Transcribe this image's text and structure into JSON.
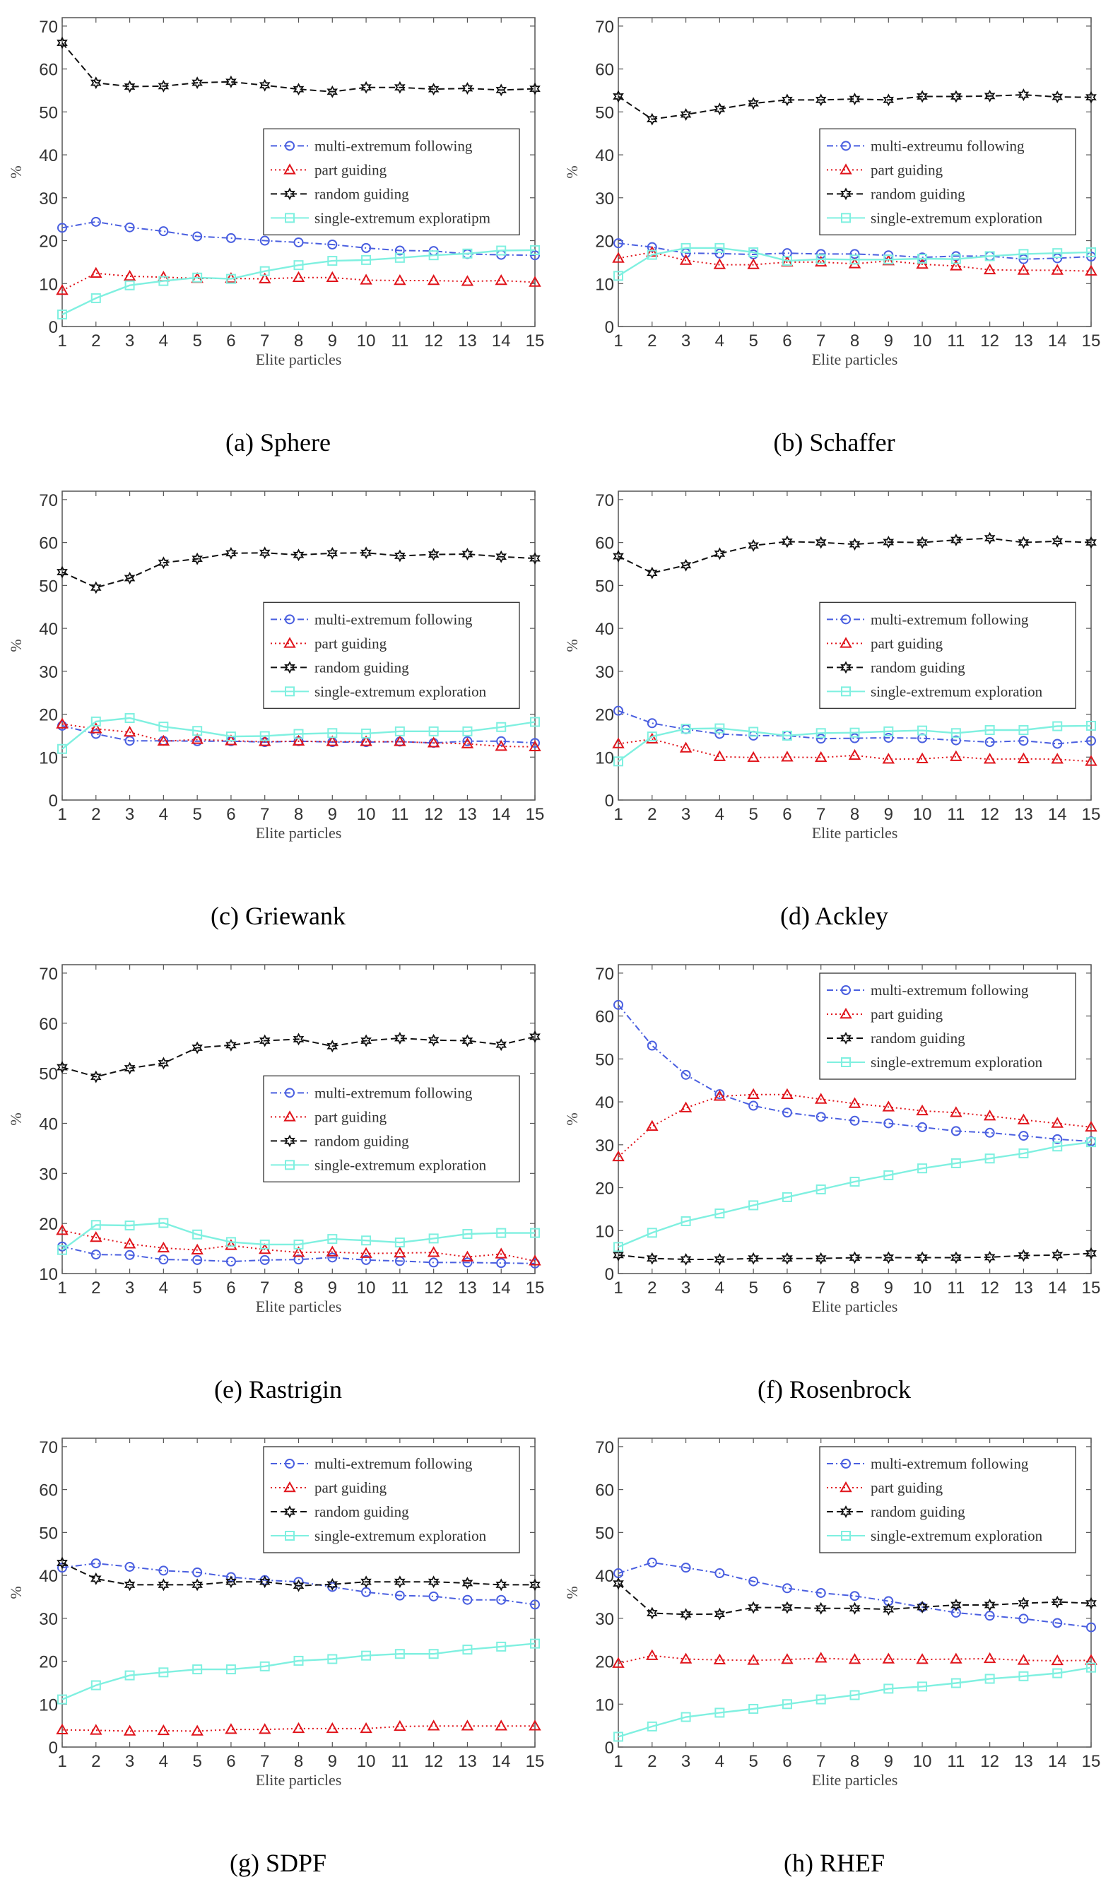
{
  "legend_labels": {
    "multi": "multi-extremum following",
    "part": "part guiding",
    "random": "random guiding",
    "single": "single-extremum exploration"
  },
  "series_styles": {
    "multi": {
      "color": "#4a5fe0",
      "marker": "circle",
      "line": "dash-dot"
    },
    "part": {
      "color": "#e0151c",
      "marker": "triangle",
      "line": "dotted"
    },
    "random": {
      "color": "#111111",
      "marker": "hexagram",
      "line": "dashed"
    },
    "single": {
      "color": "#7ff0e0",
      "marker": "square",
      "line": "solid"
    }
  },
  "chart_data": [
    {
      "type": "line",
      "caption": "(a) Sphere",
      "xlabel": "Elite particles",
      "ylabel": "%",
      "x": [
        1,
        2,
        3,
        4,
        5,
        6,
        7,
        8,
        9,
        10,
        11,
        12,
        13,
        14,
        15
      ],
      "ylim": [
        0,
        70
      ],
      "yticks": [
        0,
        10,
        20,
        30,
        40,
        50,
        60,
        70
      ],
      "legend_position": "center-right",
      "series": [
        {
          "key": "multi",
          "name": "multi-extremum following",
          "values": [
            23,
            24.4,
            23.1,
            22.2,
            21,
            20.6,
            20,
            19.6,
            19.1,
            18.3,
            17.7,
            17.6,
            16.9,
            16.7,
            16.6
          ]
        },
        {
          "key": "part",
          "name": "part guiding",
          "values": [
            8.4,
            12.4,
            11.7,
            11.5,
            11.2,
            11.2,
            11.1,
            11.4,
            11.4,
            10.8,
            10.7,
            10.7,
            10.5,
            10.7,
            10.3
          ]
        },
        {
          "key": "random",
          "name": "random guiding",
          "values": [
            66.1,
            56.8,
            55.9,
            56,
            56.8,
            57,
            56.2,
            55.3,
            54.7,
            55.7,
            55.7,
            55.3,
            55.5,
            55.1,
            55.4
          ]
        },
        {
          "key": "single",
          "name": "single-extremum exploratipm",
          "values": [
            2.8,
            6.6,
            9.6,
            10.6,
            11.4,
            11.1,
            12.9,
            14.3,
            15.3,
            15.5,
            16,
            16.6,
            17,
            17.7,
            17.8
          ]
        }
      ]
    },
    {
      "type": "line",
      "caption": "(b) Schaffer",
      "xlabel": "Elite particles",
      "ylabel": "%",
      "x": [
        1,
        2,
        3,
        4,
        5,
        6,
        7,
        8,
        9,
        10,
        11,
        12,
        13,
        14,
        15
      ],
      "ylim": [
        0,
        70
      ],
      "yticks": [
        0,
        10,
        20,
        30,
        40,
        50,
        60,
        70
      ],
      "legend_position": "center-right",
      "series": [
        {
          "key": "multi",
          "name": "multi-extreumu following",
          "values": [
            19.4,
            18.5,
            17.1,
            17,
            16.8,
            17.1,
            16.9,
            16.9,
            16.6,
            16.1,
            16.4,
            16.4,
            15.7,
            15.9,
            16.3
          ]
        },
        {
          "key": "part",
          "name": "part guiding",
          "values": [
            15.9,
            17.3,
            15.4,
            14.4,
            14.4,
            15,
            15,
            14.6,
            15.3,
            14.5,
            14.1,
            13.2,
            13.1,
            13.1,
            12.9
          ]
        },
        {
          "key": "random",
          "name": "random guiding",
          "values": [
            53.6,
            48.3,
            49.4,
            50.7,
            52,
            52.8,
            52.8,
            53,
            52.8,
            53.6,
            53.6,
            53.7,
            54,
            53.5,
            53.4
          ]
        },
        {
          "key": "single",
          "name": "single-extremum exploration",
          "values": [
            11.8,
            16.7,
            18.3,
            18.3,
            17.3,
            15.3,
            15.7,
            15.6,
            15.6,
            15.8,
            15.7,
            16.4,
            16.9,
            17.1,
            17.3
          ]
        }
      ]
    },
    {
      "type": "line",
      "caption": "(c) Griewank",
      "xlabel": "Elite particles",
      "ylabel": "%",
      "x": [
        1,
        2,
        3,
        4,
        5,
        6,
        7,
        8,
        9,
        10,
        11,
        12,
        13,
        14,
        15
      ],
      "ylim": [
        0,
        70
      ],
      "yticks": [
        0,
        10,
        20,
        30,
        40,
        50,
        60,
        70
      ],
      "legend_position": "center-right",
      "series": [
        {
          "key": "multi",
          "name": "multi-extremum following",
          "values": [
            17.3,
            15.4,
            13.8,
            13.8,
            13.7,
            13.7,
            13.5,
            13.7,
            13.5,
            13.5,
            13.6,
            13.3,
            13.7,
            13.7,
            13.3
          ]
        },
        {
          "key": "part",
          "name": "part guiding",
          "values": [
            17.7,
            16.6,
            15.8,
            13.7,
            14.1,
            13.8,
            13.6,
            13.7,
            13.6,
            13.6,
            13.6,
            13.3,
            13.1,
            12.5,
            12.4
          ]
        },
        {
          "key": "random",
          "name": "random guiding",
          "values": [
            53.1,
            49.5,
            51.7,
            55.3,
            56.2,
            57.5,
            57.6,
            57.1,
            57.5,
            57.6,
            56.9,
            57.2,
            57.3,
            56.7,
            56.3
          ]
        },
        {
          "key": "single",
          "name": "single-extremum exploration",
          "values": [
            11.9,
            18.3,
            19.1,
            17.1,
            16.1,
            14.8,
            14.9,
            15.4,
            15.6,
            15.5,
            16,
            16,
            16,
            17,
            18.2
          ]
        }
      ]
    },
    {
      "type": "line",
      "caption": "(d) Ackley",
      "xlabel": "Elite particles",
      "ylabel": "%",
      "x": [
        1,
        2,
        3,
        4,
        5,
        6,
        7,
        8,
        9,
        10,
        11,
        12,
        13,
        14,
        15
      ],
      "ylim": [
        0,
        70
      ],
      "yticks": [
        0,
        10,
        20,
        30,
        40,
        50,
        60,
        70
      ],
      "legend_position": "center-right",
      "series": [
        {
          "key": "multi",
          "name": "multi-extremum following",
          "values": [
            20.8,
            17.9,
            16.5,
            15.4,
            15,
            15,
            14.3,
            14.4,
            14.5,
            14.4,
            13.9,
            13.5,
            13.8,
            13.1,
            13.8
          ]
        },
        {
          "key": "part",
          "name": "part guiding",
          "values": [
            13.1,
            14.2,
            12.1,
            10.1,
            9.9,
            10,
            9.9,
            10.4,
            9.5,
            9.6,
            10.1,
            9.5,
            9.6,
            9.5,
            9
          ]
        },
        {
          "key": "random",
          "name": "random guiding",
          "values": [
            56.8,
            52.9,
            54.7,
            57.4,
            59.3,
            60.2,
            60,
            59.6,
            60.1,
            60,
            60.6,
            61,
            60,
            60.3,
            60
          ]
        },
        {
          "key": "single",
          "name": "single-extremum exploration",
          "values": [
            9,
            14.8,
            16.6,
            16.7,
            15.9,
            15,
            15.6,
            15.7,
            16,
            16.2,
            15.6,
            16.3,
            16.3,
            17.2,
            17.3
          ]
        }
      ]
    },
    {
      "type": "line",
      "caption": "(e) Rastrigin",
      "xlabel": "Elite particles",
      "ylabel": "%",
      "x": [
        1,
        2,
        3,
        4,
        5,
        6,
        7,
        8,
        9,
        10,
        11,
        12,
        13,
        14,
        15
      ],
      "ylim": [
        10,
        70
      ],
      "yticks": [
        10,
        20,
        30,
        40,
        50,
        60,
        70
      ],
      "legend_position": "center-right",
      "series": [
        {
          "key": "multi",
          "name": "multi-extremum following",
          "values": [
            15.4,
            13.8,
            13.7,
            12.8,
            12.7,
            12.4,
            12.7,
            12.8,
            13.2,
            12.7,
            12.5,
            12.2,
            12.2,
            12.1,
            12
          ]
        },
        {
          "key": "part",
          "name": "part guiding",
          "values": [
            18.6,
            17.2,
            15.9,
            15.1,
            14.7,
            15.6,
            14.8,
            14.2,
            14.3,
            14,
            14.1,
            14.2,
            13.3,
            13.9,
            12.5
          ]
        },
        {
          "key": "random",
          "name": "random guiding",
          "values": [
            51.2,
            49.3,
            51,
            52,
            55.1,
            55.6,
            56.5,
            56.8,
            55.4,
            56.5,
            57,
            56.6,
            56.5,
            55.7,
            57.3
          ]
        },
        {
          "key": "single",
          "name": "single-extremum exploration",
          "values": [
            14.7,
            19.7,
            19.6,
            20.1,
            17.8,
            16.3,
            15.8,
            15.8,
            16.9,
            16.6,
            16.2,
            17,
            17.9,
            18.1,
            18.1
          ]
        }
      ]
    },
    {
      "type": "line",
      "caption": "(f) Rosenbrock",
      "xlabel": "Elite particles",
      "ylabel": "%",
      "x": [
        1,
        2,
        3,
        4,
        5,
        6,
        7,
        8,
        9,
        10,
        11,
        12,
        13,
        14,
        15
      ],
      "ylim": [
        0,
        70
      ],
      "yticks": [
        0,
        10,
        20,
        30,
        40,
        50,
        60,
        70
      ],
      "legend_position": "top-right",
      "series": [
        {
          "key": "multi",
          "name": "multi-extremum following",
          "values": [
            62.6,
            53.1,
            46.3,
            41.8,
            39.1,
            37.5,
            36.5,
            35.6,
            35,
            34.1,
            33.2,
            32.8,
            32.1,
            31.3,
            30.8
          ]
        },
        {
          "key": "part",
          "name": "part guiding",
          "values": [
            27.2,
            34.3,
            38.6,
            41.3,
            41.7,
            41.7,
            40.6,
            39.6,
            38.8,
            37.9,
            37.5,
            36.7,
            35.8,
            35,
            34.1
          ]
        },
        {
          "key": "random",
          "name": "random guiding",
          "values": [
            4.3,
            3.5,
            3.3,
            3.3,
            3.5,
            3.5,
            3.5,
            3.7,
            3.7,
            3.7,
            3.7,
            3.8,
            4.2,
            4.3,
            4.7
          ]
        },
        {
          "key": "single",
          "name": "single-extremum exploration",
          "values": [
            6.2,
            9.5,
            12.2,
            14,
            15.9,
            17.8,
            19.6,
            21.4,
            22.9,
            24.5,
            25.7,
            26.8,
            28,
            29.6,
            30.6
          ]
        }
      ]
    },
    {
      "type": "line",
      "caption": "(g) SDPF",
      "xlabel": "Elite particles",
      "ylabel": "%",
      "x": [
        1,
        2,
        3,
        4,
        5,
        6,
        7,
        8,
        9,
        10,
        11,
        12,
        13,
        14,
        15
      ],
      "ylim": [
        0,
        70
      ],
      "yticks": [
        0,
        10,
        20,
        30,
        40,
        50,
        60,
        70
      ],
      "legend_position": "top-right",
      "series": [
        {
          "key": "multi",
          "name": "multi-extremum following",
          "values": [
            41.8,
            42.8,
            42,
            41.1,
            40.7,
            39.6,
            38.9,
            38.5,
            37.3,
            36.1,
            35.3,
            35.1,
            34.3,
            34.3,
            33.2
          ]
        },
        {
          "key": "part",
          "name": "part guiding",
          "values": [
            4,
            3.9,
            3.7,
            3.8,
            3.7,
            4.1,
            4.1,
            4.3,
            4.3,
            4.3,
            4.8,
            4.9,
            4.9,
            4.9,
            4.9
          ]
        },
        {
          "key": "random",
          "name": "random guiding",
          "values": [
            42.9,
            39.2,
            37.8,
            37.8,
            37.8,
            38.5,
            38.5,
            37.6,
            37.9,
            38.5,
            38.5,
            38.5,
            38.2,
            37.8,
            37.8
          ]
        },
        {
          "key": "single",
          "name": "single-extremum exploration",
          "values": [
            11.1,
            14.4,
            16.7,
            17.4,
            18.1,
            18.1,
            18.8,
            20.1,
            20.5,
            21.3,
            21.7,
            21.7,
            22.7,
            23.4,
            24.1
          ]
        }
      ]
    },
    {
      "type": "line",
      "caption": "(h) RHEF",
      "xlabel": "Elite particles",
      "ylabel": "%",
      "x": [
        1,
        2,
        3,
        4,
        5,
        6,
        7,
        8,
        9,
        10,
        11,
        12,
        13,
        14,
        15
      ],
      "ylim": [
        0,
        70
      ],
      "yticks": [
        0,
        10,
        20,
        30,
        40,
        50,
        60,
        70
      ],
      "legend_position": "top-right",
      "series": [
        {
          "key": "multi",
          "name": "multi-extremum following",
          "values": [
            40.5,
            43,
            41.8,
            40.5,
            38.6,
            37,
            35.9,
            35.2,
            34,
            32.6,
            31.3,
            30.6,
            29.9,
            28.9,
            27.9
          ]
        },
        {
          "key": "part",
          "name": "part guiding",
          "values": [
            19.5,
            21.3,
            20.5,
            20.3,
            20.2,
            20.4,
            20.7,
            20.4,
            20.5,
            20.4,
            20.5,
            20.6,
            20.2,
            20.1,
            20.2
          ]
        },
        {
          "key": "random",
          "name": "random guiding",
          "values": [
            38.1,
            31.2,
            30.9,
            31,
            32.5,
            32.5,
            32.3,
            32.3,
            32.1,
            32.6,
            33.1,
            33.1,
            33.5,
            33.8,
            33.5
          ]
        },
        {
          "key": "single",
          "name": "single-extremum exploration",
          "values": [
            2.4,
            4.8,
            7,
            8,
            8.9,
            10,
            11.1,
            12.1,
            13.6,
            14.1,
            14.9,
            15.9,
            16.5,
            17.2,
            18.5
          ]
        }
      ]
    }
  ]
}
